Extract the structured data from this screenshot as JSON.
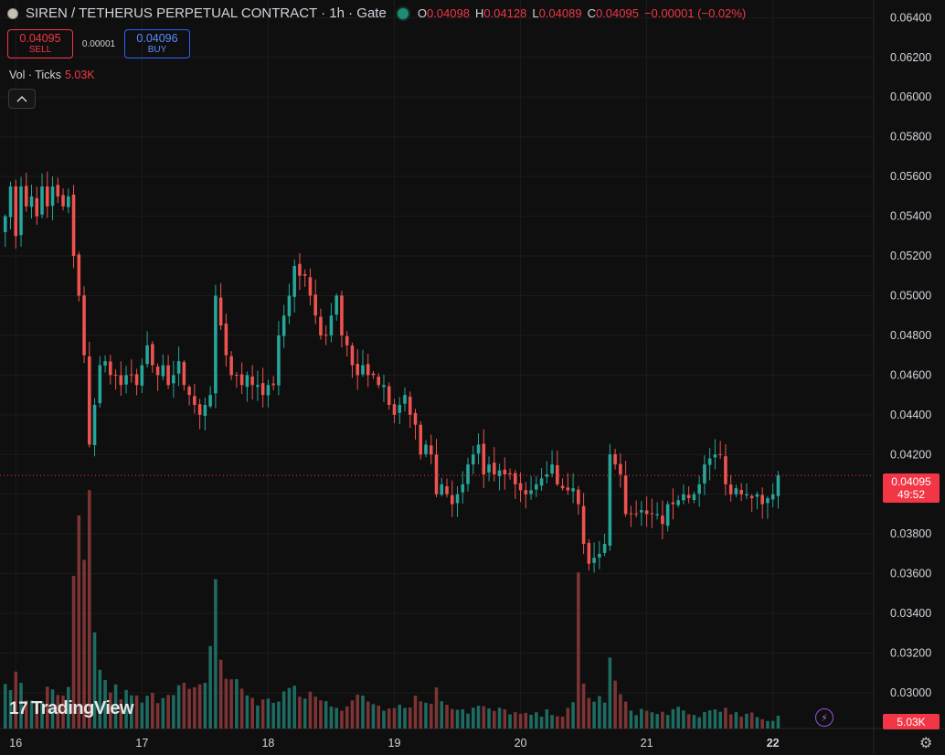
{
  "header": {
    "title": "SIREN / TETHERUS PERPETUAL CONTRACT · 1h · Gate",
    "ohlc": [
      {
        "key": "O",
        "value": "0.04098"
      },
      {
        "key": "H",
        "value": "0.04128"
      },
      {
        "key": "L",
        "value": "0.04089"
      },
      {
        "key": "C",
        "value": "0.04095"
      }
    ],
    "change": "−0.00001 (−0.02%)"
  },
  "trade": {
    "sell_price": "0.04095",
    "sell_label": "SELL",
    "spread": "0.00001",
    "buy_price": "0.04096",
    "buy_label": "BUY"
  },
  "volume_legend": {
    "label": "Vol · Ticks",
    "value": "5.03K"
  },
  "logo_text": "TradingView",
  "price_tag": {
    "price": "0.04095",
    "countdown": "49:52"
  },
  "volume_tag": "5.03K",
  "colors": {
    "up": "#26a69a",
    "down": "#ef5350",
    "up_vol": "#1e6b62",
    "down_vol": "#7d3434",
    "accent": "#2962ff",
    "background": "#0f0f0f"
  },
  "icons": {
    "collapse": "chevron-up-icon",
    "bolt": "lightning-icon",
    "settings": "gear-icon",
    "logo": "tradingview-logo-icon"
  },
  "chart_data": {
    "type": "candlestick",
    "title": "SIREN / TETHERUS PERPETUAL CONTRACT · 1h · Gate",
    "xlabel": "",
    "ylabel": "",
    "ylim": [
      0.0294,
      0.0642
    ],
    "y_ticks": [
      "0.06400",
      "0.06200",
      "0.06000",
      "0.05800",
      "0.05600",
      "0.05400",
      "0.05200",
      "0.05000",
      "0.04800",
      "0.04600",
      "0.04400",
      "0.04200",
      "0.04000",
      "0.03800",
      "0.03600",
      "0.03400",
      "0.03200",
      "0.03000"
    ],
    "y_tick_values": [
      0.064,
      0.062,
      0.06,
      0.058,
      0.056,
      0.054,
      0.052,
      0.05,
      0.048,
      0.046,
      0.044,
      0.042,
      0.04,
      0.038,
      0.036,
      0.034,
      0.032,
      0.03
    ],
    "x_ticks": [
      {
        "label": "16",
        "hour": 4
      },
      {
        "label": "17",
        "hour": 28
      },
      {
        "label": "18",
        "hour": 52
      },
      {
        "label": "19",
        "hour": 76
      },
      {
        "label": "20",
        "hour": 100
      },
      {
        "label": "21",
        "hour": 124
      },
      {
        "label": "22",
        "hour": 148
      }
    ],
    "x_range_hours": [
      1,
      167
    ],
    "first_candle_hour": 2,
    "last_price": 0.04095,
    "anchors": [
      [
        0,
        0.054
      ],
      [
        1,
        0.0555
      ],
      [
        2,
        0.053
      ],
      [
        3,
        0.0555
      ],
      [
        4,
        0.0545
      ],
      [
        5,
        0.055
      ],
      [
        6,
        0.054
      ],
      [
        7,
        0.0555
      ],
      [
        8,
        0.0545
      ],
      [
        9,
        0.0555
      ],
      [
        10,
        0.055
      ],
      [
        11,
        0.0545
      ],
      [
        12,
        0.055
      ],
      [
        13,
        0.052
      ],
      [
        14,
        0.05
      ],
      [
        15,
        0.047
      ],
      [
        16,
        0.0425
      ],
      [
        17,
        0.0445
      ],
      [
        18,
        0.0465
      ],
      [
        19,
        0.0467
      ],
      [
        20,
        0.046
      ],
      [
        21,
        0.046
      ],
      [
        22,
        0.0455
      ],
      [
        23,
        0.046
      ],
      [
        24,
        0.046
      ],
      [
        25,
        0.0455
      ],
      [
        26,
        0.0465
      ],
      [
        27,
        0.0475
      ],
      [
        28,
        0.0465
      ],
      [
        29,
        0.046
      ],
      [
        30,
        0.0465
      ],
      [
        31,
        0.0455
      ],
      [
        32,
        0.046
      ],
      [
        33,
        0.0467
      ],
      [
        34,
        0.0455
      ],
      [
        35,
        0.045
      ],
      [
        36,
        0.0445
      ],
      [
        37,
        0.044
      ],
      [
        38,
        0.0445
      ],
      [
        39,
        0.045
      ],
      [
        40,
        0.05
      ],
      [
        41,
        0.0485
      ],
      [
        42,
        0.047
      ],
      [
        43,
        0.046
      ],
      [
        44,
        0.046
      ],
      [
        45,
        0.0455
      ],
      [
        46,
        0.046
      ],
      [
        47,
        0.0455
      ],
      [
        48,
        0.0455
      ],
      [
        49,
        0.045
      ],
      [
        50,
        0.0455
      ],
      [
        51,
        0.0455
      ],
      [
        52,
        0.048
      ],
      [
        53,
        0.049
      ],
      [
        54,
        0.05
      ],
      [
        55,
        0.0515
      ],
      [
        56,
        0.051
      ],
      [
        57,
        0.051
      ],
      [
        58,
        0.05
      ],
      [
        59,
        0.049
      ],
      [
        60,
        0.048
      ],
      [
        61,
        0.048
      ],
      [
        62,
        0.049
      ],
      [
        63,
        0.05
      ],
      [
        64,
        0.048
      ],
      [
        65,
        0.0475
      ],
      [
        66,
        0.0465
      ],
      [
        67,
        0.046
      ],
      [
        68,
        0.0465
      ],
      [
        69,
        0.046
      ],
      [
        70,
        0.046
      ],
      [
        71,
        0.0455
      ],
      [
        72,
        0.0455
      ],
      [
        73,
        0.0445
      ],
      [
        74,
        0.044
      ],
      [
        75,
        0.0445
      ],
      [
        76,
        0.045
      ],
      [
        77,
        0.044
      ],
      [
        78,
        0.0435
      ],
      [
        79,
        0.042
      ],
      [
        80,
        0.0425
      ],
      [
        81,
        0.042
      ],
      [
        82,
        0.04
      ],
      [
        83,
        0.0405
      ],
      [
        84,
        0.04
      ],
      [
        85,
        0.0395
      ],
      [
        86,
        0.04
      ],
      [
        87,
        0.0405
      ],
      [
        88,
        0.0415
      ],
      [
        89,
        0.042
      ],
      [
        90,
        0.0425
      ],
      [
        91,
        0.041
      ],
      [
        92,
        0.0415
      ],
      [
        93,
        0.041
      ],
      [
        94,
        0.0412
      ],
      [
        95,
        0.041
      ],
      [
        96,
        0.041
      ],
      [
        97,
        0.0405
      ],
      [
        98,
        0.0402
      ],
      [
        99,
        0.04
      ],
      [
        100,
        0.0402
      ],
      [
        101,
        0.0405
      ],
      [
        102,
        0.0408
      ],
      [
        103,
        0.041
      ],
      [
        104,
        0.0415
      ],
      [
        105,
        0.0405
      ],
      [
        106,
        0.0403
      ],
      [
        107,
        0.0402
      ],
      [
        108,
        0.0403
      ],
      [
        109,
        0.0395
      ],
      [
        110,
        0.0375
      ],
      [
        111,
        0.0365
      ],
      [
        112,
        0.0368
      ],
      [
        113,
        0.037
      ],
      [
        114,
        0.0375
      ],
      [
        115,
        0.042
      ],
      [
        116,
        0.0415
      ],
      [
        117,
        0.041
      ],
      [
        118,
        0.039
      ],
      [
        119,
        0.039
      ],
      [
        120,
        0.039
      ],
      [
        121,
        0.0392
      ],
      [
        122,
        0.039
      ],
      [
        123,
        0.039
      ],
      [
        124,
        0.039
      ],
      [
        125,
        0.0385
      ],
      [
        126,
        0.0395
      ],
      [
        127,
        0.0395
      ],
      [
        128,
        0.0397
      ],
      [
        129,
        0.04
      ],
      [
        130,
        0.0398
      ],
      [
        131,
        0.04
      ],
      [
        132,
        0.0405
      ],
      [
        133,
        0.0415
      ],
      [
        134,
        0.0418
      ],
      [
        135,
        0.042
      ],
      [
        136,
        0.042
      ],
      [
        137,
        0.0405
      ],
      [
        138,
        0.04
      ],
      [
        139,
        0.0403
      ],
      [
        140,
        0.04
      ],
      [
        141,
        0.04
      ],
      [
        142,
        0.0398
      ],
      [
        143,
        0.04
      ],
      [
        144,
        0.0395
      ],
      [
        145,
        0.0398
      ],
      [
        146,
        0.04
      ],
      [
        147,
        0.041
      ]
    ],
    "volume_anchors": [
      [
        0,
        0.09
      ],
      [
        2,
        0.11
      ],
      [
        4,
        0.07
      ],
      [
        6,
        0.06
      ],
      [
        8,
        0.08
      ],
      [
        10,
        0.07
      ],
      [
        12,
        0.08
      ],
      [
        13,
        0.3
      ],
      [
        14,
        0.42
      ],
      [
        15,
        0.34
      ],
      [
        16,
        0.44
      ],
      [
        17,
        0.2
      ],
      [
        18,
        0.15
      ],
      [
        19,
        0.1
      ],
      [
        20,
        0.09
      ],
      [
        22,
        0.08
      ],
      [
        24,
        0.07
      ],
      [
        26,
        0.06
      ],
      [
        28,
        0.07
      ],
      [
        30,
        0.08
      ],
      [
        32,
        0.1
      ],
      [
        34,
        0.09
      ],
      [
        36,
        0.08
      ],
      [
        38,
        0.09
      ],
      [
        39,
        0.22
      ],
      [
        40,
        0.33
      ],
      [
        41,
        0.16
      ],
      [
        42,
        0.12
      ],
      [
        44,
        0.1
      ],
      [
        46,
        0.08
      ],
      [
        48,
        0.06
      ],
      [
        50,
        0.06
      ],
      [
        52,
        0.07
      ],
      [
        54,
        0.09
      ],
      [
        56,
        0.07
      ],
      [
        58,
        0.08
      ],
      [
        60,
        0.06
      ],
      [
        62,
        0.06
      ],
      [
        64,
        0.05
      ],
      [
        66,
        0.06
      ],
      [
        68,
        0.07
      ],
      [
        70,
        0.06
      ],
      [
        72,
        0.05
      ],
      [
        74,
        0.06
      ],
      [
        76,
        0.05
      ],
      [
        78,
        0.07
      ],
      [
        80,
        0.06
      ],
      [
        82,
        0.08
      ],
      [
        84,
        0.06
      ],
      [
        86,
        0.05
      ],
      [
        88,
        0.04
      ],
      [
        90,
        0.05
      ],
      [
        92,
        0.04
      ],
      [
        94,
        0.04
      ],
      [
        96,
        0.04
      ],
      [
        98,
        0.03
      ],
      [
        100,
        0.03
      ],
      [
        102,
        0.03
      ],
      [
        104,
        0.04
      ],
      [
        106,
        0.03
      ],
      [
        108,
        0.05
      ],
      [
        109,
        0.32
      ],
      [
        110,
        0.1
      ],
      [
        112,
        0.06
      ],
      [
        114,
        0.07
      ],
      [
        115,
        0.14
      ],
      [
        116,
        0.1
      ],
      [
        118,
        0.05
      ],
      [
        120,
        0.04
      ],
      [
        122,
        0.04
      ],
      [
        124,
        0.03
      ],
      [
        126,
        0.04
      ],
      [
        128,
        0.04
      ],
      [
        130,
        0.03
      ],
      [
        132,
        0.03
      ],
      [
        134,
        0.04
      ],
      [
        136,
        0.05
      ],
      [
        138,
        0.03
      ],
      [
        140,
        0.03
      ],
      [
        142,
        0.03
      ],
      [
        144,
        0.02
      ],
      [
        146,
        0.02
      ],
      [
        147,
        0.03
      ]
    ]
  }
}
